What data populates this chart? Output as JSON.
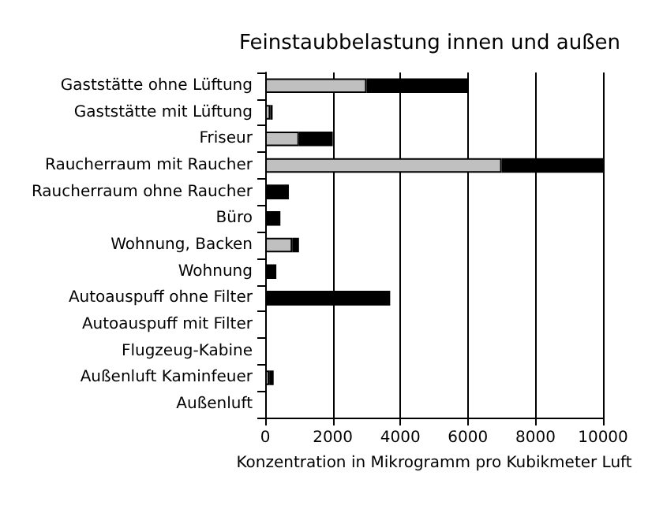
{
  "chart_data": {
    "type": "bar",
    "orientation": "horizontal",
    "stacked": true,
    "title": "Feinstaubbelastung innen und außen",
    "xlabel": "Konzentration in Mikrogramm pro Kubikmeter Luft",
    "categories": [
      "Gaststätte ohne Lüftung",
      "Gaststätte mit Lüftung",
      "Friseur",
      "Raucherraum mit Raucher",
      "Raucherraum ohne Raucher",
      "Büro",
      "Wohnung, Backen",
      "Wohnung",
      "Autoauspuff ohne Filter",
      "Autoauspuff mit Filter",
      "Flugzeug-Kabine",
      "Außenluft Kaminfeuer",
      "Außenluft"
    ],
    "series": [
      {
        "color": "#c0c0c0",
        "values": [
          3000,
          150,
          1000,
          7000,
          0,
          null,
          800,
          null,
          0,
          0,
          0,
          120,
          0
        ]
      },
      {
        "color": "#000000",
        "values": [
          3000,
          70,
          1000,
          3000,
          700,
          450,
          200,
          330,
          3700,
          0,
          0,
          130,
          0
        ]
      }
    ],
    "xlim": [
      0,
      10000
    ],
    "xticks": [
      0,
      2000,
      4000,
      6000,
      8000,
      10000
    ],
    "grid": "x"
  }
}
